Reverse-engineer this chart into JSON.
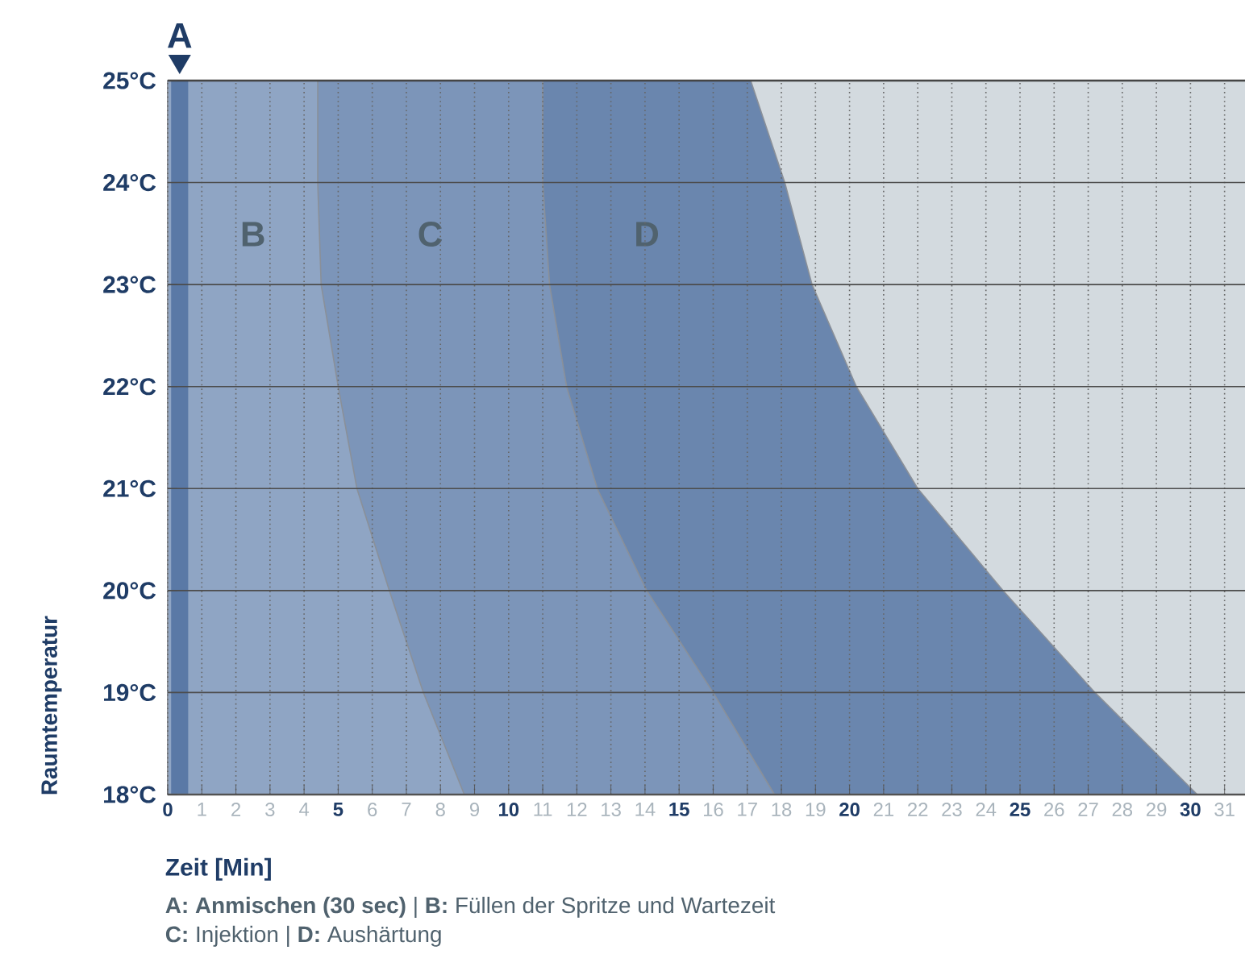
{
  "chart_data": {
    "type": "area",
    "xlabel": "Zeit [Min]",
    "ylabel": "Raumtemperatur",
    "xlim": [
      0,
      31.6
    ],
    "ylim": [
      18,
      25
    ],
    "xticks": [
      0,
      1,
      2,
      3,
      4,
      5,
      6,
      7,
      8,
      9,
      10,
      11,
      12,
      13,
      14,
      15,
      16,
      17,
      18,
      19,
      20,
      21,
      22,
      23,
      24,
      25,
      26,
      27,
      28,
      29,
      30,
      31
    ],
    "yticks": [
      {
        "value": 18,
        "label": "18°C"
      },
      {
        "value": 19,
        "label": "19°C"
      },
      {
        "value": 20,
        "label": "20°C"
      },
      {
        "value": 21,
        "label": "21°C"
      },
      {
        "value": 22,
        "label": "22°C"
      },
      {
        "value": 23,
        "label": "23°C"
      },
      {
        "value": 24,
        "label": "24°C"
      },
      {
        "value": 25,
        "label": "25°C"
      }
    ],
    "grid": true,
    "orientation": "horizontal",
    "series": [
      {
        "color": "#8fa5c4",
        "values": [
          8.7,
          7.5,
          6.5,
          5.55,
          5.0,
          4.5,
          4.4,
          4.4
        ],
        "x": [
          18,
          19,
          20,
          21,
          22,
          23,
          24,
          25
        ]
      },
      {
        "color": "#7c95b9",
        "values": [
          17.8,
          16.0,
          14.05,
          12.6,
          11.7,
          11.2,
          11.0,
          11.0
        ],
        "x": [
          18,
          19,
          20,
          21,
          22,
          23,
          24,
          25
        ]
      },
      {
        "color": "#6a86ae",
        "values": [
          30.2,
          27.2,
          24.5,
          22.0,
          20.2,
          18.9,
          18.1,
          17.1
        ],
        "x": [
          18,
          19,
          20,
          21,
          22,
          23,
          24,
          25
        ]
      }
    ],
    "bands": [
      {
        "axis": "x",
        "from": 0.1,
        "to": 0.6,
        "color": "#5a79a6"
      }
    ],
    "annotations": [
      {
        "text": "A",
        "x": 0.35,
        "y": 25
      },
      "B",
      "C",
      "D",
      "**A: Anmischen (30 sec)** | **B:** Füllen der Spritze und Wartezeit",
      "**C:** Injektion | **D:** Aushärtung"
    ]
  }
}
